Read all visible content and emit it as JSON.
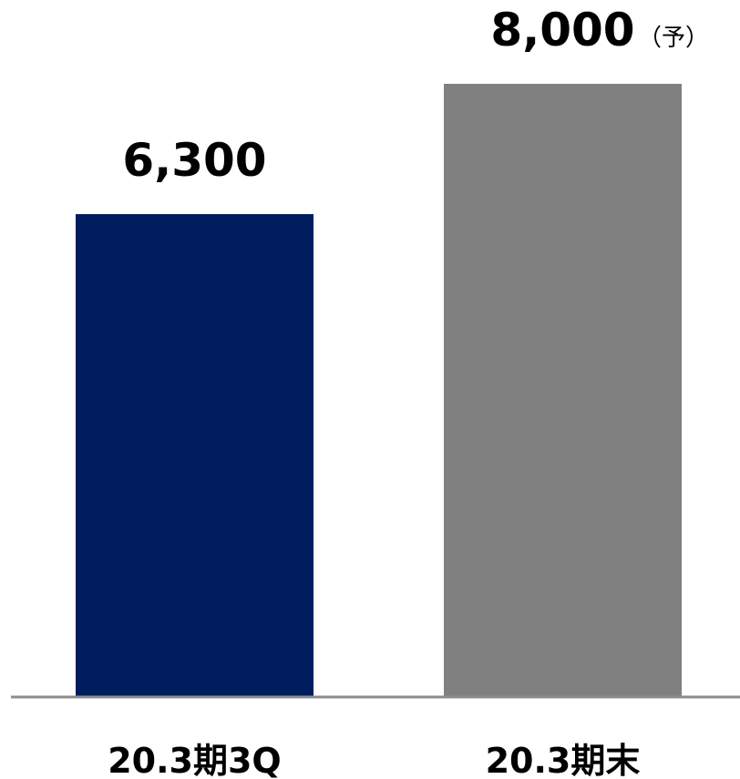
{
  "chart_data": {
    "type": "bar",
    "categories": [
      "20.3期3Q",
      "20.3期末"
    ],
    "values": [
      6300,
      8000
    ],
    "data_labels": [
      "6,300",
      "8,000"
    ],
    "value_notes": [
      "",
      "（予）"
    ],
    "bar_colors": [
      "#001e5e",
      "#808080"
    ],
    "axis_color": "#8c8c8c",
    "ylim": [
      0,
      8000
    ],
    "grid": false,
    "legend": "none"
  }
}
